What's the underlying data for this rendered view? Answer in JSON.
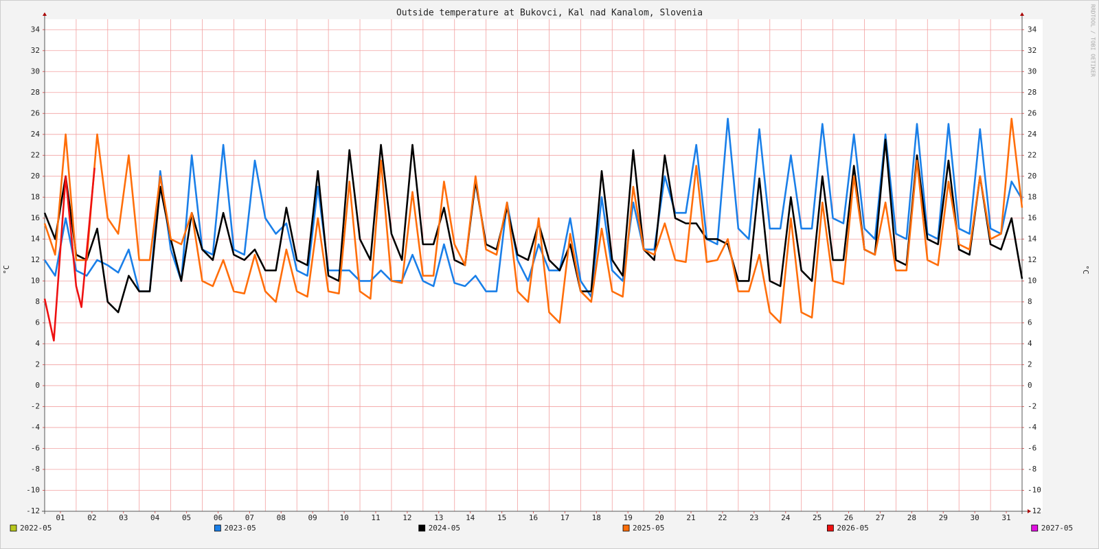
{
  "chart_data": {
    "type": "line",
    "title": "Outside temperature at Bukovci, Kal nad Kanalom, Slovenia",
    "y_label": "°C",
    "watermark": "RRDTOOL / TOBI OETIKER",
    "x": [
      0,
      8,
      16,
      24,
      32,
      40,
      48,
      56,
      64,
      72,
      80,
      88,
      96,
      104,
      112,
      120,
      128,
      136,
      144,
      152,
      160,
      168,
      176,
      184,
      192,
      200,
      208,
      216,
      224,
      232,
      240,
      248,
      256,
      264,
      272,
      280,
      288,
      296,
      304,
      312,
      320,
      328,
      336,
      344,
      352,
      360,
      368,
      376,
      384,
      392,
      400,
      408,
      416,
      424,
      432,
      440,
      448,
      456,
      464,
      472,
      480,
      488,
      496,
      504,
      512,
      520,
      528,
      536,
      544,
      552,
      560,
      568,
      576,
      584,
      592,
      600,
      608,
      616,
      624,
      632,
      640,
      648,
      656,
      664,
      672,
      680,
      688,
      696,
      704,
      712,
      720,
      728,
      736,
      744
    ],
    "xlim": [
      0,
      744
    ],
    "xticks": [
      {
        "value": 12,
        "label": "01"
      },
      {
        "value": 36,
        "label": "02"
      },
      {
        "value": 60,
        "label": "03"
      },
      {
        "value": 84,
        "label": "04"
      },
      {
        "value": 108,
        "label": "05"
      },
      {
        "value": 132,
        "label": "06"
      },
      {
        "value": 156,
        "label": "07"
      },
      {
        "value": 180,
        "label": "08"
      },
      {
        "value": 204,
        "label": "09"
      },
      {
        "value": 228,
        "label": "10"
      },
      {
        "value": 252,
        "label": "11"
      },
      {
        "value": 276,
        "label": "12"
      },
      {
        "value": 300,
        "label": "13"
      },
      {
        "value": 324,
        "label": "14"
      },
      {
        "value": 348,
        "label": "15"
      },
      {
        "value": 372,
        "label": "16"
      },
      {
        "value": 396,
        "label": "17"
      },
      {
        "value": 420,
        "label": "18"
      },
      {
        "value": 444,
        "label": "19"
      },
      {
        "value": 468,
        "label": "20"
      },
      {
        "value": 492,
        "label": "21"
      },
      {
        "value": 516,
        "label": "22"
      },
      {
        "value": 540,
        "label": "23"
      },
      {
        "value": 564,
        "label": "24"
      },
      {
        "value": 588,
        "label": "25"
      },
      {
        "value": 612,
        "label": "26"
      },
      {
        "value": 636,
        "label": "27"
      },
      {
        "value": 660,
        "label": "28"
      },
      {
        "value": 684,
        "label": "29"
      },
      {
        "value": 708,
        "label": "30"
      },
      {
        "value": 732,
        "label": "31"
      }
    ],
    "xgrid": [
      24,
      48,
      72,
      96,
      120,
      144,
      168,
      192,
      216,
      240,
      264,
      288,
      312,
      336,
      360,
      384,
      408,
      432,
      456,
      480,
      504,
      528,
      552,
      576,
      600,
      624,
      648,
      672,
      696,
      720
    ],
    "ylim": [
      -12,
      35
    ],
    "yticks": [
      -12,
      -10,
      -8,
      -6,
      -4,
      -2,
      0,
      2,
      4,
      6,
      8,
      10,
      12,
      14,
      16,
      18,
      20,
      22,
      24,
      26,
      28,
      30,
      32,
      34
    ],
    "grid": true,
    "legend": "bottom",
    "series": [
      {
        "name": "2022-05",
        "color": "#b8c81e",
        "x": [],
        "values": []
      },
      {
        "name": "2023-05",
        "color": "#1a7fe8",
        "values": [
          12,
          10.5,
          16,
          11,
          10.5,
          12,
          11.5,
          10.8,
          13,
          9,
          9,
          20.5,
          13,
          10,
          22,
          13,
          12.5,
          23,
          13,
          12.5,
          21.5,
          16,
          14.5,
          15.5,
          11,
          10.5,
          19,
          11,
          11,
          11,
          10,
          10,
          11,
          10,
          10,
          12.5,
          10,
          9.5,
          13.5,
          9.8,
          9.5,
          10.5,
          9,
          9,
          17.5,
          12,
          10,
          13.5,
          11,
          11,
          16,
          10,
          8.5,
          18,
          11,
          10,
          17.5,
          13,
          13,
          20,
          16.5,
          16.5,
          23,
          14,
          13.5,
          25.5,
          15,
          14,
          24.5,
          15,
          15,
          22,
          15,
          15,
          25,
          16,
          15.5,
          24,
          15,
          14,
          24,
          14.5,
          14,
          25,
          14.5,
          14,
          25,
          15,
          14.5,
          24.5,
          15,
          14.5,
          19.5,
          17.8
        ]
      },
      {
        "name": "2024-05",
        "color": "#000000",
        "values": [
          16.5,
          14,
          20,
          12.5,
          12,
          15,
          8,
          7,
          10.5,
          9,
          9,
          19,
          14,
          10,
          16.5,
          13,
          12,
          16.5,
          12.5,
          12,
          13,
          11,
          11,
          17,
          12,
          11.5,
          20.5,
          10.5,
          10,
          22.5,
          14,
          12,
          23,
          14.5,
          12,
          23,
          13.5,
          13.5,
          17,
          12,
          11.5,
          19.5,
          13.5,
          13,
          17,
          12.5,
          12,
          15.5,
          12,
          11,
          13.5,
          9,
          9,
          20.5,
          12,
          10.5,
          22.5,
          13,
          12,
          22,
          16,
          15.5,
          15.5,
          14,
          14,
          13.5,
          10,
          10,
          19.8,
          10,
          9.5,
          18,
          11,
          10,
          20,
          12,
          12,
          21,
          13,
          12.5,
          23.5,
          12,
          11.5,
          22,
          14,
          13.5,
          21.5,
          13,
          12.5,
          20,
          13.5,
          13,
          16,
          10.2
        ]
      },
      {
        "name": "2025-05",
        "color": "#ff6e0a",
        "values": [
          15.5,
          12.5,
          24,
          12,
          12,
          24,
          16,
          14.5,
          22,
          12,
          12,
          20,
          14,
          13.5,
          16.5,
          10,
          9.5,
          12,
          9,
          8.8,
          12.5,
          9,
          8,
          13,
          9,
          8.5,
          16,
          9,
          8.8,
          19.5,
          9,
          8.3,
          21.5,
          10,
          9.8,
          18.5,
          10.5,
          10.5,
          19.5,
          13.5,
          11.5,
          20,
          13,
          12.5,
          17.5,
          9,
          8,
          16,
          7,
          6,
          14.5,
          9,
          8,
          15,
          9,
          8.5,
          19,
          13,
          12.5,
          15.5,
          12,
          11.8,
          21,
          11.8,
          12,
          14,
          9,
          9,
          12.5,
          7,
          6,
          16,
          7,
          6.5,
          17.5,
          10,
          9.7,
          20,
          13,
          12.5,
          17.5,
          11,
          11,
          21.5,
          12,
          11.5,
          19.5,
          13.5,
          13,
          20,
          14,
          14.5,
          25.5,
          17
        ]
      },
      {
        "name": "2026-05",
        "color": "#ee1111",
        "x": [
          0,
          7,
          16,
          24,
          28,
          38
        ],
        "values": [
          8.3,
          4.3,
          20,
          9.5,
          7.5,
          20.8
        ]
      },
      {
        "name": "2027-05",
        "color": "#e010e0",
        "x": [],
        "values": []
      }
    ]
  }
}
